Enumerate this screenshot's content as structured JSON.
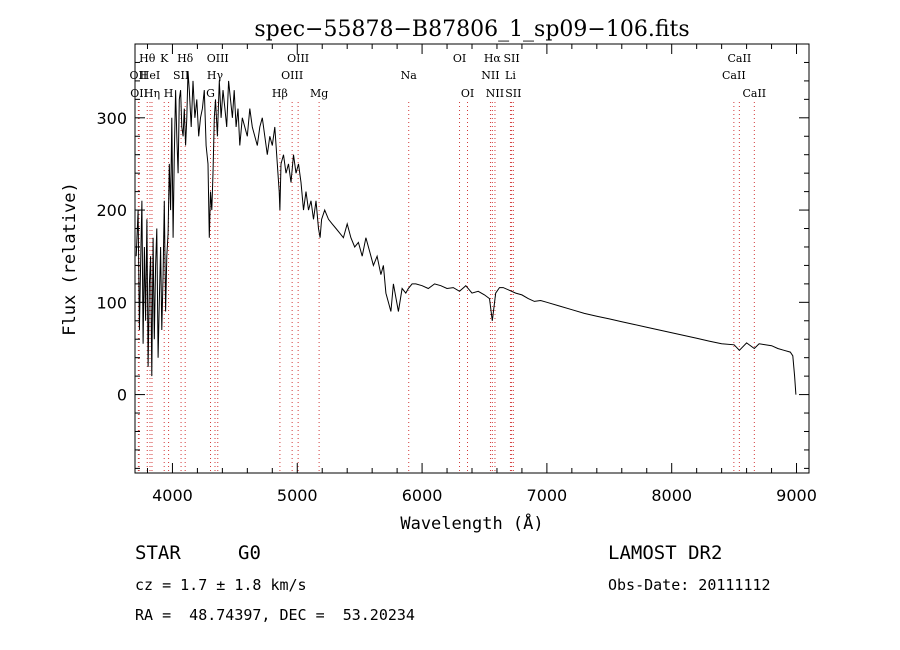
{
  "chart_data": {
    "type": "line",
    "title": "spec−55878−B87806_1_sp09−106.fits",
    "xlabel": "Wavelength (Å)",
    "ylabel": "Flux (relative)",
    "xlim": [
      3700,
      9100
    ],
    "ylim": [
      -85,
      380
    ],
    "xticks": [
      4000,
      5000,
      6000,
      7000,
      8000,
      9000
    ],
    "yticks": [
      0,
      100,
      200,
      300
    ],
    "xtick_labels": [
      "4000",
      "5000",
      "6000",
      "7000",
      "8000",
      "9000"
    ],
    "ytick_labels": [
      "0",
      "100",
      "200",
      "300"
    ],
    "grid": false,
    "series": [
      {
        "name": "flux",
        "x": [
          3710,
          3725,
          3735,
          3745,
          3755,
          3765,
          3775,
          3785,
          3795,
          3805,
          3815,
          3825,
          3835,
          3845,
          3855,
          3865,
          3875,
          3885,
          3895,
          3905,
          3915,
          3925,
          3935,
          3945,
          3955,
          3965,
          3975,
          3985,
          3995,
          4005,
          4015,
          4025,
          4035,
          4045,
          4055,
          4065,
          4075,
          4085,
          4095,
          4105,
          4115,
          4125,
          4135,
          4150,
          4165,
          4180,
          4195,
          4210,
          4225,
          4240,
          4255,
          4270,
          4285,
          4295,
          4305,
          4315,
          4325,
          4335,
          4345,
          4360,
          4375,
          4390,
          4405,
          4420,
          4435,
          4450,
          4465,
          4480,
          4495,
          4510,
          4525,
          4540,
          4560,
          4580,
          4600,
          4620,
          4640,
          4660,
          4680,
          4700,
          4720,
          4740,
          4760,
          4780,
          4800,
          4820,
          4840,
          4855,
          4861,
          4870,
          4890,
          4910,
          4930,
          4950,
          4970,
          4990,
          5010,
          5030,
          5050,
          5070,
          5090,
          5110,
          5130,
          5150,
          5170,
          5183,
          5195,
          5220,
          5250,
          5280,
          5310,
          5340,
          5370,
          5400,
          5430,
          5460,
          5490,
          5520,
          5550,
          5580,
          5610,
          5640,
          5670,
          5690,
          5710,
          5730,
          5750,
          5770,
          5790,
          5810,
          5840,
          5870,
          5890,
          5920,
          5950,
          6000,
          6050,
          6100,
          6150,
          6200,
          6250,
          6300,
          6350,
          6400,
          6450,
          6500,
          6540,
          6563,
          6590,
          6620,
          6650,
          6700,
          6750,
          6800,
          6850,
          6900,
          6950,
          7000,
          7100,
          7200,
          7300,
          7400,
          7500,
          7600,
          7700,
          7800,
          7900,
          8000,
          8100,
          8200,
          8300,
          8400,
          8500,
          8542,
          8600,
          8662,
          8700,
          8800,
          8850,
          8900,
          8950,
          8970,
          8985,
          8995
        ],
        "y": [
          150,
          200,
          70,
          140,
          210,
          55,
          160,
          80,
          190,
          30,
          120,
          150,
          20,
          170,
          60,
          140,
          180,
          40,
          100,
          160,
          70,
          130,
          210,
          90,
          150,
          175,
          250,
          200,
          300,
          170,
          260,
          330,
          280,
          240,
          320,
          330,
          290,
          280,
          310,
          270,
          300,
          350,
          330,
          290,
          340,
          300,
          320,
          280,
          300,
          310,
          330,
          270,
          250,
          170,
          220,
          200,
          240,
          300,
          320,
          280,
          340,
          300,
          330,
          310,
          290,
          340,
          320,
          300,
          330,
          290,
          310,
          270,
          300,
          290,
          280,
          310,
          290,
          280,
          270,
          290,
          300,
          280,
          260,
          280,
          270,
          290,
          250,
          220,
          200,
          250,
          260,
          240,
          250,
          230,
          260,
          240,
          250,
          230,
          200,
          220,
          200,
          210,
          190,
          210,
          180,
          170,
          190,
          200,
          190,
          185,
          180,
          175,
          170,
          185,
          170,
          160,
          165,
          150,
          170,
          155,
          140,
          150,
          130,
          140,
          110,
          100,
          90,
          120,
          105,
          90,
          115,
          110,
          115,
          120,
          120,
          118,
          115,
          120,
          118,
          115,
          116,
          112,
          118,
          110,
          112,
          108,
          104,
          80,
          110,
          116,
          116,
          113,
          110,
          108,
          104,
          101,
          102,
          100,
          96,
          92,
          88,
          85,
          82,
          79,
          76,
          73,
          70,
          67,
          64,
          61,
          58,
          55,
          54,
          48,
          56,
          50,
          55,
          53,
          50,
          48,
          46,
          42,
          20,
          0
        ]
      }
    ],
    "line_annotations": [
      {
        "label": "Hθ",
        "x": 3798,
        "row": 1
      },
      {
        "label": "K",
        "x": 3934,
        "row": 1
      },
      {
        "label": "Hδ",
        "x": 4102,
        "row": 1
      },
      {
        "label": "OII",
        "x": 3727,
        "row": 2
      },
      {
        "label": "HeI",
        "x": 3820,
        "row": 2
      },
      {
        "label": "SII",
        "x": 4069,
        "row": 2
      },
      {
        "label": "OII",
        "x": 3733,
        "row": 3
      },
      {
        "label": "Hη",
        "x": 3836,
        "row": 3
      },
      {
        "label": "H",
        "x": 3969,
        "row": 3
      },
      {
        "label": "OIII",
        "x": 4363,
        "row": 1
      },
      {
        "label": "Hγ",
        "x": 4341,
        "row": 2
      },
      {
        "label": "G",
        "x": 4305,
        "row": 3
      },
      {
        "label": "OIII",
        "x": 5007,
        "row": 1
      },
      {
        "label": "OIII",
        "x": 4959,
        "row": 2
      },
      {
        "label": "Hβ",
        "x": 4861,
        "row": 3
      },
      {
        "label": "Mg",
        "x": 5175,
        "row": 3
      },
      {
        "label": "Na",
        "x": 5893,
        "row": 2
      },
      {
        "label": "OI",
        "x": 6300,
        "row": 1
      },
      {
        "label": "OI",
        "x": 6364,
        "row": 3
      },
      {
        "label": "Hα",
        "x": 6563,
        "row": 1
      },
      {
        "label": "SII",
        "x": 6717,
        "row": 1
      },
      {
        "label": "NII",
        "x": 6548,
        "row": 2
      },
      {
        "label": "Li",
        "x": 6708,
        "row": 2
      },
      {
        "label": "NII",
        "x": 6584,
        "row": 3
      },
      {
        "label": "SII",
        "x": 6731,
        "row": 3
      },
      {
        "label": "CaII",
        "x": 8542,
        "row": 1
      },
      {
        "label": "CaII",
        "x": 8498,
        "row": 2
      },
      {
        "label": "CaII",
        "x": 8662,
        "row": 3
      }
    ]
  },
  "info": {
    "star_label": "STAR",
    "spectral_type": "G0",
    "survey": "LAMOST DR2",
    "cz": "cz = 1.7 ± 1.8 km/s",
    "obs_date": "Obs-Date: 20111112",
    "coords": "RA =  48.74397, DEC =  53.20234"
  }
}
